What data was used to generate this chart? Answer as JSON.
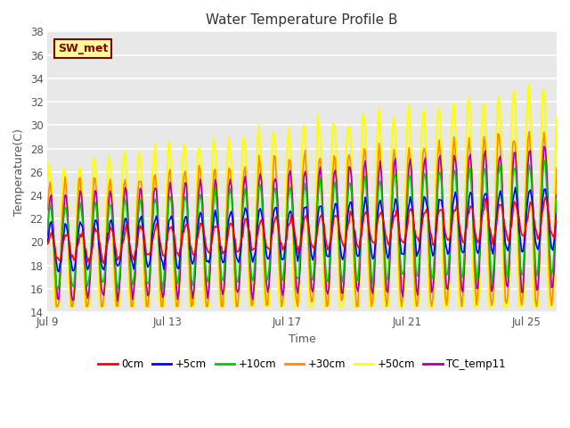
{
  "title": "Water Temperature Profile B",
  "xlabel": "Time",
  "ylabel": "Temperature(C)",
  "ylim": [
    14,
    38
  ],
  "yticks": [
    14,
    16,
    18,
    20,
    22,
    24,
    26,
    28,
    30,
    32,
    34,
    36,
    38
  ],
  "xtick_labels": [
    "Jul 9",
    "Jul 13",
    "Jul 17",
    "Jul 21",
    "Jul 25"
  ],
  "xtick_positions": [
    0,
    4,
    8,
    12,
    16
  ],
  "annotation_text": "SW_met",
  "annotation_color": "#8B0000",
  "annotation_bg": "#FFFF99",
  "plot_bg": "#E8E8E8",
  "grid_color": "#FFFFFF",
  "series_order": [
    "0cm",
    "+5cm",
    "+10cm",
    "+30cm",
    "+50cm",
    "TC_temp11"
  ],
  "series_colors": [
    "#FF0000",
    "#0000FF",
    "#00CC00",
    "#FF8C00",
    "#FFFF00",
    "#AA00AA"
  ],
  "series_lw": [
    1.2,
    1.2,
    1.2,
    1.2,
    1.5,
    1.2
  ],
  "n_points": 408,
  "n_days": 17,
  "base_temp": 19.5,
  "trend_rate": 0.15,
  "seed": 7
}
